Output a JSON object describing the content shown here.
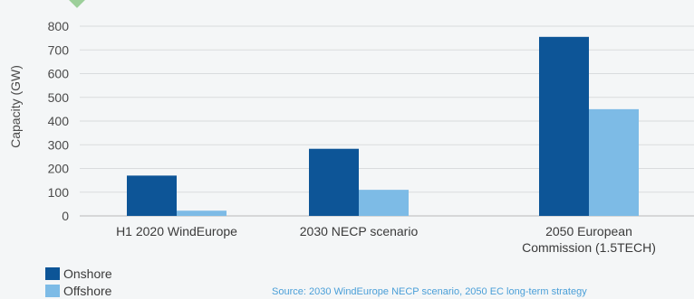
{
  "chart_data": {
    "type": "bar",
    "title": "",
    "xlabel": "",
    "ylabel": "Capacity (GW)",
    "ylim": [
      0,
      800
    ],
    "yticks": [
      0,
      100,
      200,
      300,
      400,
      500,
      600,
      700,
      800
    ],
    "categories": [
      [
        "H1 2020 WindEurope"
      ],
      [
        "2030 NECP scenario"
      ],
      [
        "2050 European",
        "Commission (1.5TECH)"
      ]
    ],
    "series": [
      {
        "name": "Onshore",
        "color": "#0d5597",
        "values": [
          170,
          283,
          755
        ]
      },
      {
        "name": "Offshore",
        "color": "#7dbbe6",
        "values": [
          22,
          110,
          450
        ]
      }
    ],
    "grid": true,
    "legend_position": "bottom-left"
  },
  "source": "Source: 2030 WindEurope NECP scenario, 2050 EC long-term strategy"
}
